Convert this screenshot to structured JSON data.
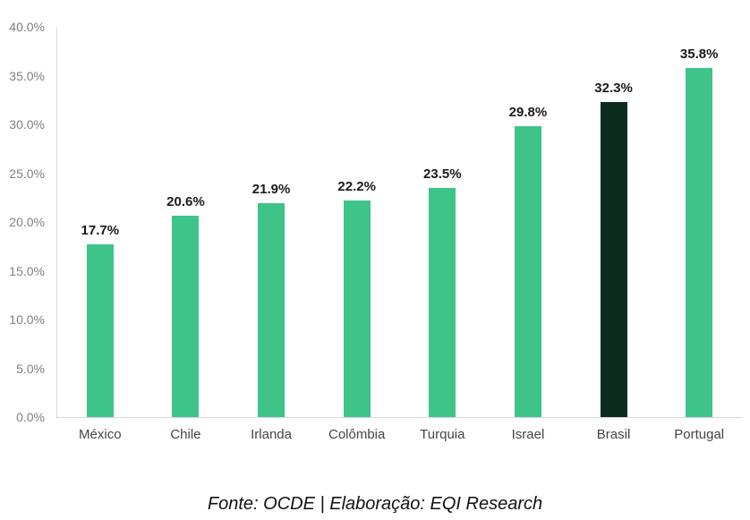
{
  "caption": "Fonte: OCDE | Elaboração: EQI Research",
  "chart_data": {
    "type": "bar",
    "categories": [
      "México",
      "Chile",
      "Irlanda",
      "Colômbia",
      "Turquia",
      "Israel",
      "Brasil",
      "Portugal"
    ],
    "values": [
      17.7,
      20.6,
      21.9,
      22.2,
      23.5,
      29.8,
      32.3,
      35.8
    ],
    "data_labels": [
      "17.7%",
      "20.6%",
      "21.9%",
      "22.2%",
      "23.5%",
      "29.8%",
      "32.3%",
      "35.8%"
    ],
    "title": "",
    "xlabel": "",
    "ylabel": "",
    "ylim": [
      0,
      40
    ],
    "y_ticks": [
      "40.0%",
      "35.0%",
      "30.0%",
      "25.0%",
      "20.0%",
      "15.0%",
      "10.0%",
      "5.0%",
      "0.0%"
    ],
    "grid": false,
    "legend": false,
    "bar_color": "#3EC489",
    "highlight_color": "#0B2B1E",
    "highlight_category": "Brasil",
    "axis_line_color": "#d9d9d9"
  }
}
